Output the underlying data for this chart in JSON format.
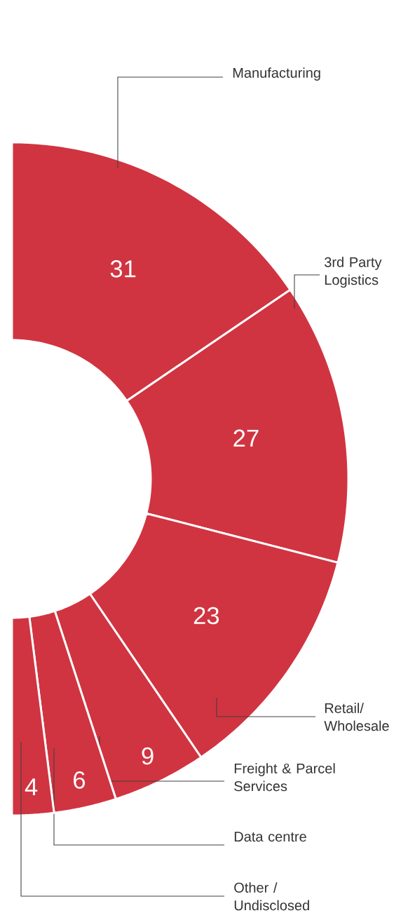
{
  "chart_data": {
    "type": "donut",
    "categories": [
      "Manufacturing",
      "3rd Party Logistics",
      "Retail/ Wholesale",
      "Freight & Parcel Services",
      "Data centre",
      "Other / Undisclosed"
    ],
    "values": [
      31,
      27,
      23,
      9,
      6,
      4
    ],
    "colors": [
      "#d03441",
      "#d03441",
      "#d03441",
      "#d03441",
      "#d03441",
      "#d03441"
    ],
    "data_labels": true
  }
}
